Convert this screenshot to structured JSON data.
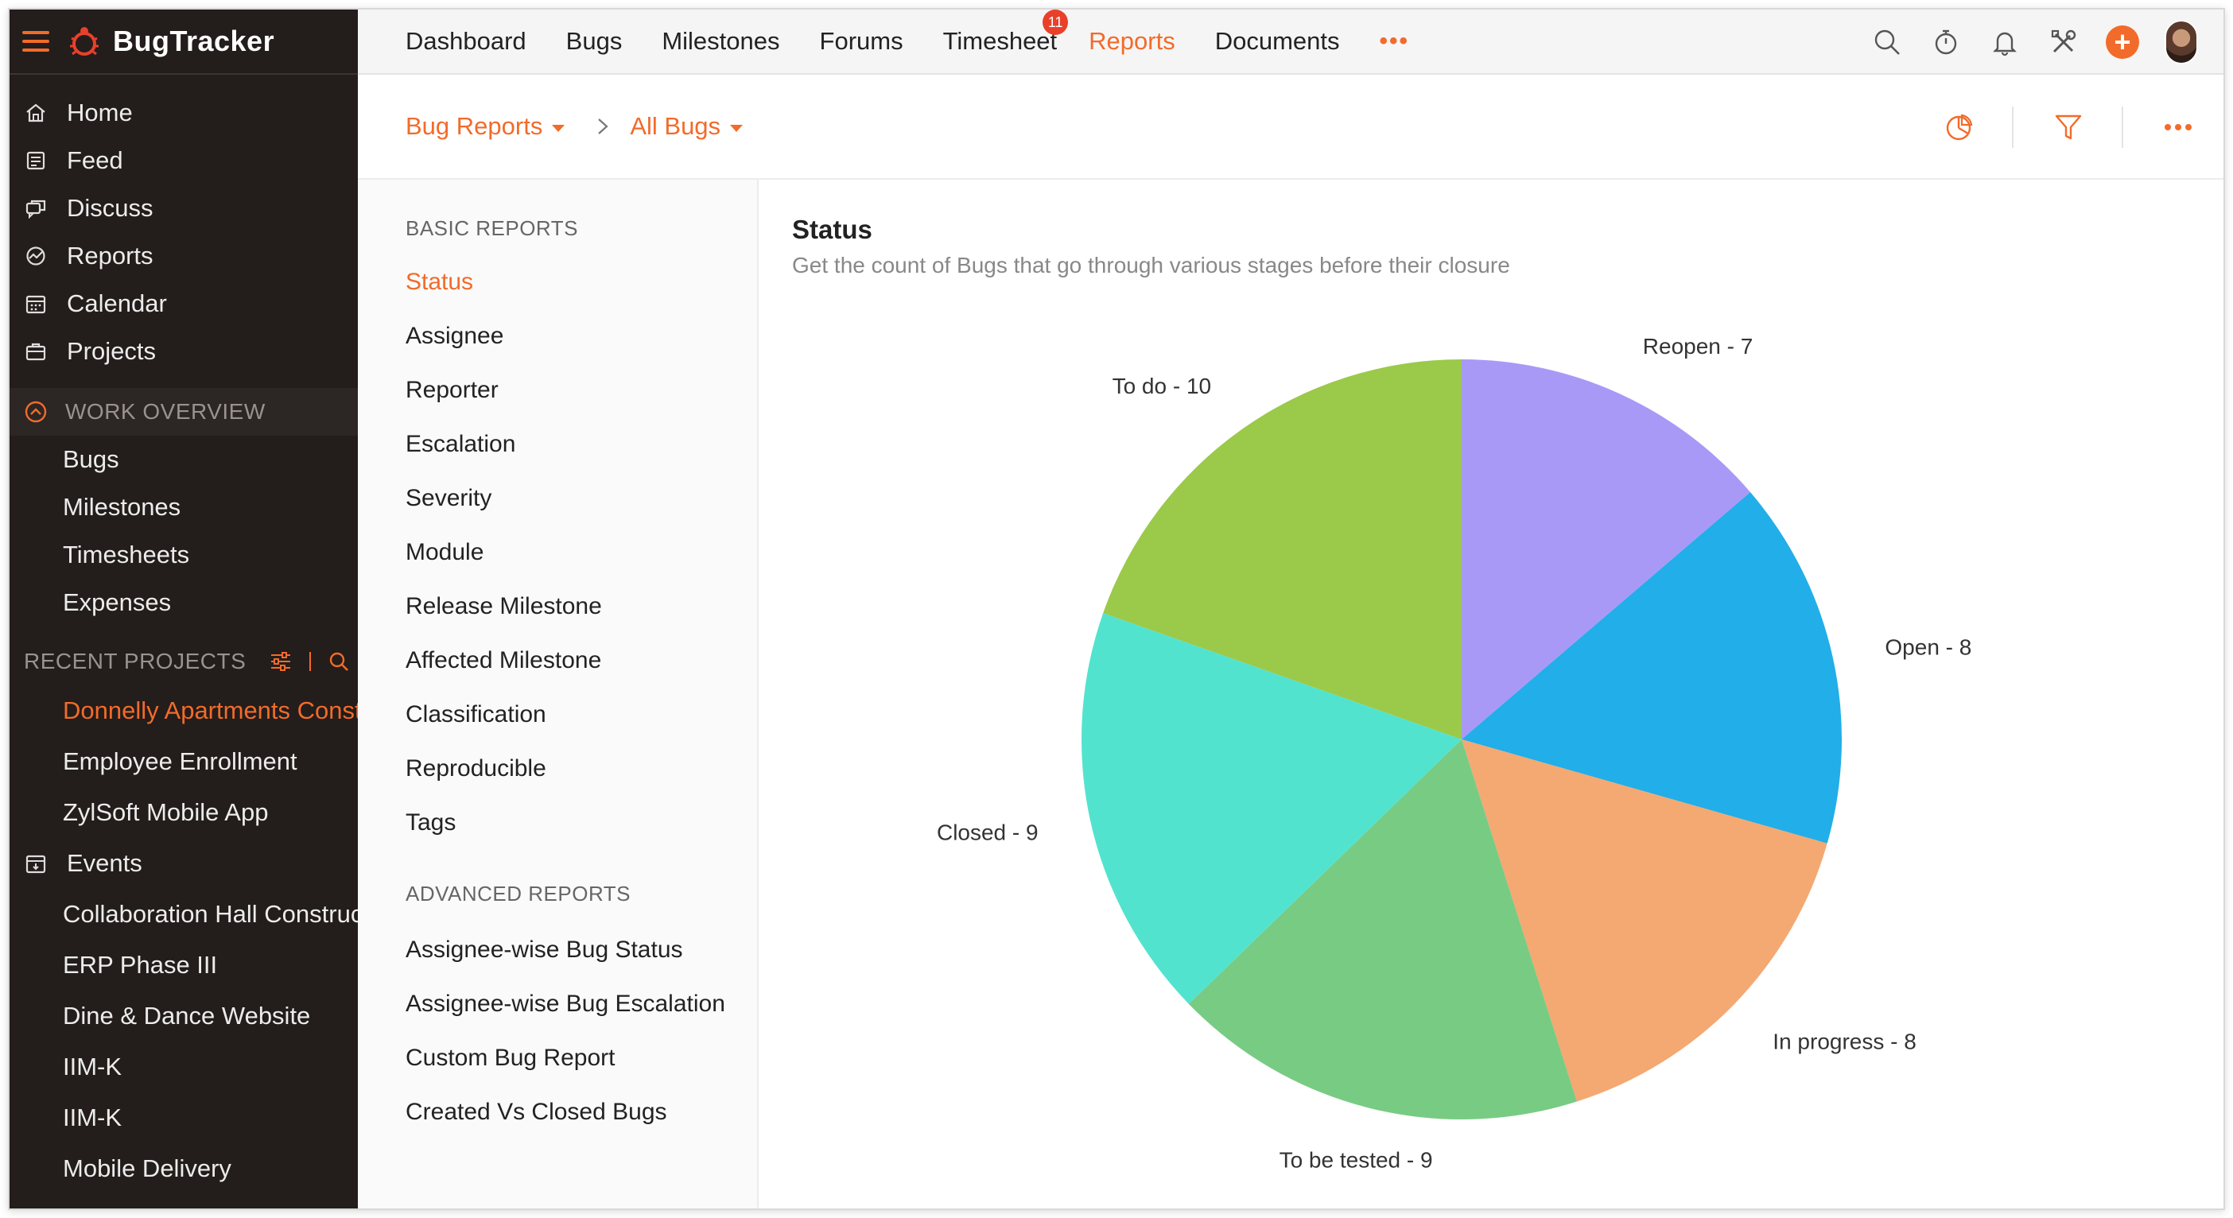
{
  "app": {
    "name": "BugTracker",
    "brand_color": "#f26b2a"
  },
  "sidebar": {
    "top_items": [
      {
        "label": "Home",
        "icon": "home-icon"
      },
      {
        "label": "Feed",
        "icon": "feed-icon"
      },
      {
        "label": "Discuss",
        "icon": "discuss-icon"
      },
      {
        "label": "Reports",
        "icon": "reports-icon"
      },
      {
        "label": "Calendar",
        "icon": "calendar-icon"
      },
      {
        "label": "Projects",
        "icon": "projects-icon"
      }
    ],
    "work_overview": {
      "heading": "WORK OVERVIEW",
      "items": [
        "Bugs",
        "Milestones",
        "Timesheets",
        "Expenses"
      ]
    },
    "recent_projects": {
      "heading": "RECENT PROJECTS",
      "items": [
        {
          "label": "Donnelly Apartments Construction",
          "active": true
        },
        {
          "label": "Employee Enrollment"
        },
        {
          "label": "ZylSoft Mobile App"
        }
      ]
    },
    "events": {
      "label": "Events"
    },
    "event_items": [
      "Collaboration Hall Construction",
      "ERP Phase III",
      "Dine & Dance Website",
      "IIM-K",
      "IIM-K",
      "Mobile Delivery"
    ]
  },
  "topnav": {
    "items": [
      {
        "label": "Dashboard"
      },
      {
        "label": "Bugs"
      },
      {
        "label": "Milestones"
      },
      {
        "label": "Forums"
      },
      {
        "label": "Timesheet",
        "badge": "11"
      },
      {
        "label": "Reports",
        "active": true
      },
      {
        "label": "Documents"
      }
    ],
    "more_label": "•••"
  },
  "breadcrumb": {
    "first": "Bug Reports",
    "second": "All Bugs"
  },
  "reports": {
    "basic_heading": "BASIC REPORTS",
    "basic": [
      "Status",
      "Assignee",
      "Reporter",
      "Escalation",
      "Severity",
      "Module",
      "Release Milestone",
      "Affected Milestone",
      "Classification",
      "Reproducible",
      "Tags"
    ],
    "active": "Status",
    "advanced_heading": "ADVANCED REPORTS",
    "advanced": [
      "Assignee-wise Bug Status",
      "Assignee-wise Bug Escalation",
      "Custom Bug Report",
      "Created Vs Closed Bugs"
    ]
  },
  "main": {
    "title": "Status",
    "subtitle": "Get the count of Bugs that go through various stages before their closure"
  },
  "chart_data": {
    "type": "pie",
    "title": "Status",
    "categories": [
      "Reopen",
      "Open",
      "In progress",
      "To be tested",
      "Closed",
      "To do"
    ],
    "values": [
      7,
      8,
      8,
      9,
      9,
      10
    ],
    "labels": [
      "Reopen - 7",
      "Open - 8",
      "In progress - 8",
      "To be tested - 9",
      "Closed - 9",
      "To do - 10"
    ],
    "colors": [
      "#a899f7",
      "#22aee8",
      "#f4a872",
      "#78cb83",
      "#52e3cf",
      "#9bc94a"
    ],
    "start_angle_deg": 0,
    "direction": "clockwise",
    "legend": "none"
  }
}
